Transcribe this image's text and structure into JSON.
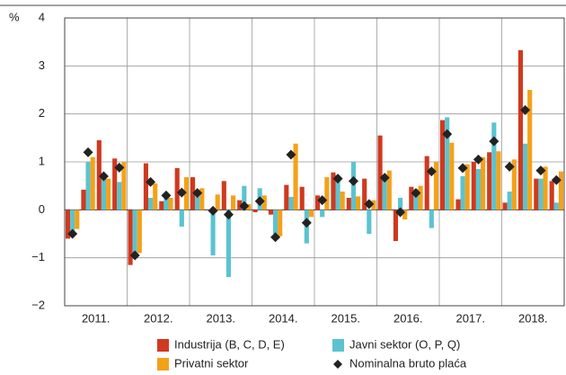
{
  "chart_data": {
    "type": "bar",
    "y_unit": "%",
    "groups": [
      "2011.",
      "2012.",
      "2013.",
      "2014.",
      "2015.",
      "2016.",
      "2017.",
      "2018."
    ],
    "ylim": [
      -2,
      4
    ],
    "yticks": [
      {
        "value": -2,
        "label": "−2"
      },
      {
        "value": -1,
        "label": "−1"
      },
      0,
      1,
      2,
      3,
      4
    ],
    "grid": true,
    "series": [
      {
        "name": "Industrija (B, C, D, E)",
        "color": "#d0391f",
        "kind": "bar",
        "values": [
          -0.6,
          0.42,
          1.45,
          1.07,
          -1.15,
          0.97,
          0.18,
          0.87,
          0.68,
          0.0,
          0.6,
          0.2,
          -0.05,
          -0.1,
          0.52,
          0.48,
          0.3,
          0.78,
          0.25,
          0.65,
          1.55,
          -0.65,
          0.48,
          1.12,
          1.87,
          0.22,
          1.0,
          1.2,
          0.15,
          3.33,
          0.65,
          0.6
        ]
      },
      {
        "name": "Javni sektor (O, P, Q)",
        "color": "#5bc3d0",
        "kind": "bar",
        "values": [
          -0.55,
          1.0,
          0.7,
          0.58,
          -1.0,
          0.25,
          0.3,
          -0.35,
          0.28,
          -0.95,
          -1.4,
          0.5,
          0.45,
          -0.5,
          0.27,
          -0.7,
          -0.15,
          0.72,
          1.0,
          -0.5,
          0.7,
          0.25,
          0.43,
          -0.38,
          1.93,
          0.7,
          0.85,
          1.82,
          0.38,
          1.38,
          0.65,
          0.15
        ]
      },
      {
        "name": "Privatni sektor",
        "color": "#f4a11a",
        "kind": "bar",
        "values": [
          -0.4,
          1.1,
          0.65,
          1.0,
          -0.9,
          0.55,
          0.25,
          0.68,
          0.45,
          0.32,
          0.3,
          0.12,
          0.3,
          -0.55,
          1.38,
          -0.15,
          0.68,
          0.38,
          0.28,
          0.2,
          0.82,
          -0.2,
          0.5,
          1.0,
          1.4,
          0.95,
          1.1,
          1.22,
          1.05,
          2.5,
          0.9,
          0.8
        ]
      },
      {
        "name": "Nominalna bruto plaća",
        "color": "#222222",
        "kind": "diamond",
        "values": [
          -0.5,
          1.2,
          0.7,
          0.88,
          -0.95,
          0.58,
          0.3,
          0.36,
          0.35,
          -0.02,
          -0.1,
          0.08,
          0.18,
          -0.57,
          1.15,
          -0.27,
          0.2,
          0.65,
          0.6,
          0.12,
          0.67,
          -0.05,
          0.35,
          0.8,
          1.58,
          0.87,
          1.05,
          1.43,
          0.9,
          2.08,
          0.82,
          0.62
        ]
      }
    ]
  }
}
